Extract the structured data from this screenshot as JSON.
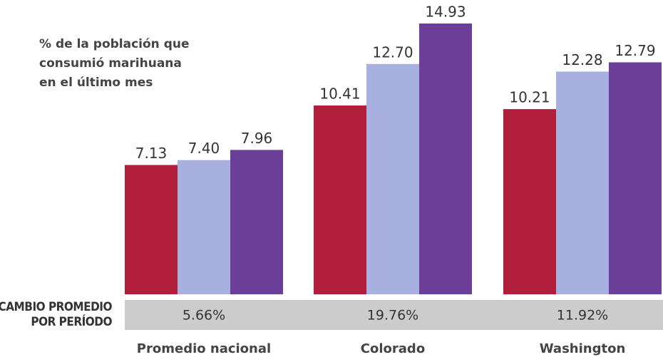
{
  "chart_data": {
    "type": "bar",
    "title": [
      "% de la población que",
      "consumió marihuana",
      "en el último mes"
    ],
    "categories": [
      "Promedio nacional",
      "Colorado",
      "Washington"
    ],
    "series": [
      {
        "color": "#b01e3a",
        "values": [
          7.13,
          10.41,
          10.21
        ],
        "value_labels": [
          "7.13",
          "10.41",
          "10.21"
        ]
      },
      {
        "color": "#a8b0e0",
        "values": [
          7.4,
          12.7,
          12.28
        ],
        "value_labels": [
          "7.40",
          "12.70",
          "12.28"
        ]
      },
      {
        "color": "#6b3f98",
        "values": [
          7.96,
          14.93,
          12.79
        ],
        "value_labels": [
          "7.96",
          "14.93",
          "12.79"
        ]
      }
    ],
    "change_label": [
      "CAMBIO PROMEDIO",
      "POR PERÍODO"
    ],
    "change_values": [
      "5.66%",
      "19.76%",
      "11.92%"
    ]
  }
}
